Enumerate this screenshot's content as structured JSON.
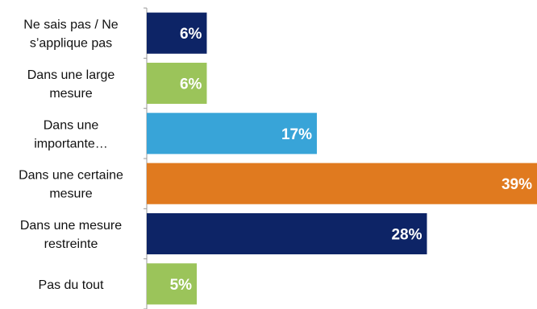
{
  "chart_data": {
    "type": "bar",
    "orientation": "horizontal",
    "title": "",
    "xlabel": "",
    "ylabel": "",
    "categories": [
      [
        "Ne sais pas / Ne",
        "s’applique pas"
      ],
      [
        "Dans une large",
        "mesure"
      ],
      [
        "Dans une",
        "importante…"
      ],
      [
        "Dans une certaine",
        "mesure"
      ],
      [
        "Dans une mesure",
        "restreinte"
      ],
      [
        "Pas du tout"
      ]
    ],
    "values": [
      6,
      6,
      17,
      39,
      28,
      5
    ],
    "data_labels": [
      "6%",
      "6%",
      "17%",
      "39%",
      "28%",
      "5%"
    ],
    "colors": [
      "#0d2466",
      "#9bc45a",
      "#38a4d8",
      "#e07a1f",
      "#0d2466",
      "#9bc45a"
    ],
    "xlim": [
      0,
      39
    ],
    "grid": false,
    "legend": "none"
  }
}
